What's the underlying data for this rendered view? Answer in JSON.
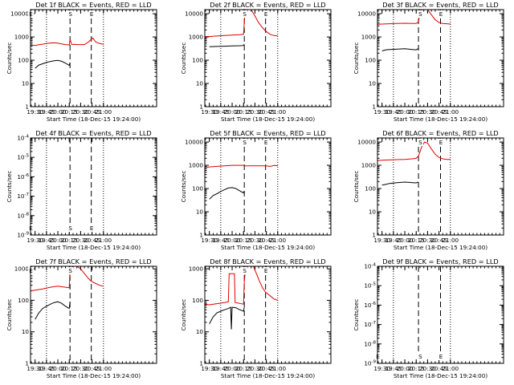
{
  "colors": {
    "events": "#000000",
    "lld": "#e00000"
  },
  "xaxis": {
    "range_min": [
      1104,
      1270
    ],
    "ticks": [
      {
        "t": 1110,
        "label": "19:30"
      },
      {
        "t": 1125,
        "label": "19:45"
      },
      {
        "t": 1140,
        "label": "20:00"
      },
      {
        "t": 1155,
        "label": "20:15"
      },
      {
        "t": 1170,
        "label": "20:30"
      },
      {
        "t": 1185,
        "label": "20:45"
      },
      {
        "t": 1200,
        "label": "21:00"
      }
    ],
    "xlabel": "Start Time (18-Dec-15 19:24:00)"
  },
  "ylabel": "Counts/sec",
  "chart_data": [
    {
      "type": "line",
      "title": "Det 1f BLACK = Events, RED = LLD",
      "ylim": [
        1,
        15000
      ],
      "yscale": "log",
      "ytick_style": "plain",
      "markers": {
        "E": [
          1104,
          1184
        ],
        "S": [
          1156
        ]
      },
      "dotted_x": [
        1125,
        1200
      ],
      "dashed_x": [
        1156,
        1184
      ],
      "has_data": true,
      "series": [
        {
          "name": "Events",
          "color": "#000000",
          "points": [
            [
              1110,
              45
            ],
            [
              1115,
              62
            ],
            [
              1120,
              70
            ],
            [
              1125,
              80
            ],
            [
              1130,
              88
            ],
            [
              1135,
              95
            ],
            [
              1140,
              98
            ],
            [
              1145,
              90
            ],
            [
              1150,
              75
            ],
            [
              1155,
              60
            ],
            [
              1156,
              80
            ]
          ]
        },
        {
          "name": "LLD",
          "color": "#e00000",
          "points": [
            [
              1104,
              450
            ],
            [
              1110,
              430
            ],
            [
              1115,
              460
            ],
            [
              1120,
              490
            ],
            [
              1125,
              520
            ],
            [
              1130,
              550
            ],
            [
              1135,
              560
            ],
            [
              1140,
              540
            ],
            [
              1145,
              500
            ],
            [
              1150,
              470
            ],
            [
              1155,
              450
            ],
            [
              1156,
              800
            ],
            [
              1158,
              480
            ],
            [
              1165,
              470
            ],
            [
              1175,
              470
            ],
            [
              1180,
              600
            ],
            [
              1184,
              800
            ],
            [
              1186,
              900
            ],
            [
              1190,
              600
            ],
            [
              1195,
              520
            ],
            [
              1200,
              480
            ]
          ]
        }
      ]
    },
    {
      "type": "line",
      "title": "Det 2f BLACK = Events, RED = LLD",
      "ylim": [
        1,
        15000
      ],
      "yscale": "log",
      "ytick_style": "plain",
      "markers": {
        "E": [
          1184
        ],
        "S": [
          1156
        ]
      },
      "dotted_x": [
        1125,
        1200
      ],
      "dashed_x": [
        1156,
        1184
      ],
      "has_data": true,
      "series": [
        {
          "name": "Events",
          "color": "#000000",
          "points": [
            [
              1110,
              380
            ],
            [
              1120,
              390
            ],
            [
              1130,
              400
            ],
            [
              1140,
              410
            ],
            [
              1150,
              420
            ],
            [
              1155,
              430
            ],
            [
              1156,
              500
            ]
          ]
        },
        {
          "name": "LLD",
          "color": "#e00000",
          "points": [
            [
              1104,
              1050
            ],
            [
              1110,
              1050
            ],
            [
              1120,
              1100
            ],
            [
              1130,
              1150
            ],
            [
              1140,
              1200
            ],
            [
              1150,
              1250
            ],
            [
              1155,
              1300
            ],
            [
              1156,
              4000
            ],
            [
              1157,
              15000
            ],
            [
              1165,
              15000
            ],
            [
              1170,
              8000
            ],
            [
              1175,
              4000
            ],
            [
              1180,
              2500
            ],
            [
              1184,
              1800
            ],
            [
              1190,
              1300
            ],
            [
              1195,
              1150
            ],
            [
              1200,
              1100
            ]
          ]
        }
      ]
    },
    {
      "type": "line",
      "title": "Det 3f BLACK = Events, RED = LLD",
      "ylim": [
        1,
        15000
      ],
      "yscale": "log",
      "ytick_style": "plain",
      "markers": {
        "E": [
          1187
        ],
        "S": [
          1160
        ]
      },
      "dotted_x": [
        1125,
        1200
      ],
      "dashed_x": [
        1158,
        1187
      ],
      "has_data": true,
      "series": [
        {
          "name": "Events",
          "color": "#000000",
          "points": [
            [
              1110,
              250
            ],
            [
              1115,
              280
            ],
            [
              1120,
              290
            ],
            [
              1130,
              300
            ],
            [
              1140,
              310
            ],
            [
              1150,
              290
            ],
            [
              1155,
              280
            ],
            [
              1158,
              320
            ]
          ]
        },
        {
          "name": "LLD",
          "color": "#e00000",
          "points": [
            [
              1104,
              3500
            ],
            [
              1110,
              3600
            ],
            [
              1120,
              3700
            ],
            [
              1130,
              3800
            ],
            [
              1140,
              3900
            ],
            [
              1150,
              3800
            ],
            [
              1155,
              3800
            ],
            [
              1158,
              4500
            ],
            [
              1160,
              12000
            ],
            [
              1163,
              15000
            ],
            [
              1170,
              15000
            ],
            [
              1175,
              9000
            ],
            [
              1180,
              5500
            ],
            [
              1185,
              4200
            ],
            [
              1190,
              3800
            ],
            [
              1195,
              3700
            ],
            [
              1200,
              3600
            ]
          ]
        }
      ]
    },
    {
      "type": "line",
      "title": "Det 4f BLACK = Events, RED = LLD",
      "ylim": [
        1e-09,
        0.0001
      ],
      "yscale": "log",
      "ytick_style": "exp",
      "markers": {
        "E": [
          1104,
          1184
        ],
        "S": [
          1156
        ]
      },
      "dotted_x": [
        1125,
        1200
      ],
      "dashed_x": [
        1156,
        1184
      ],
      "has_data": false,
      "series": []
    },
    {
      "type": "line",
      "title": "Det 5f BLACK = Events, RED = LLD",
      "ylim": [
        1,
        15000
      ],
      "yscale": "log",
      "ytick_style": "plain",
      "markers": {
        "E": [
          1184
        ],
        "S": [
          1156
        ]
      },
      "dotted_x": [
        1125,
        1200
      ],
      "dashed_x": [
        1156,
        1184
      ],
      "has_data": true,
      "series": [
        {
          "name": "Events",
          "color": "#000000",
          "points": [
            [
              1110,
              35
            ],
            [
              1115,
              50
            ],
            [
              1120,
              60
            ],
            [
              1125,
              75
            ],
            [
              1130,
              90
            ],
            [
              1135,
              105
            ],
            [
              1140,
              110
            ],
            [
              1145,
              100
            ],
            [
              1150,
              80
            ],
            [
              1155,
              65
            ],
            [
              1156,
              80
            ]
          ]
        },
        {
          "name": "LLD",
          "color": "#e00000",
          "points": [
            [
              1104,
              800
            ],
            [
              1110,
              850
            ],
            [
              1120,
              900
            ],
            [
              1130,
              950
            ],
            [
              1140,
              1000
            ],
            [
              1150,
              1000
            ],
            [
              1155,
              1000
            ],
            [
              1156,
              950
            ],
            [
              1165,
              950
            ],
            [
              1175,
              950
            ],
            [
              1184,
              950
            ],
            [
              1190,
              900
            ],
            [
              1196,
              1000
            ],
            [
              1200,
              950
            ]
          ]
        }
      ]
    },
    {
      "type": "line",
      "title": "Det 6f BLACK = Events, RED = LLD",
      "ylim": [
        1,
        15000
      ],
      "yscale": "log",
      "ytick_style": "plain",
      "markers": {
        "E": [
          1187
        ],
        "S": [
          1160
        ]
      },
      "dotted_x": [
        1125,
        1200
      ],
      "dashed_x": [
        1158,
        1187
      ],
      "has_data": true,
      "series": [
        {
          "name": "Events",
          "color": "#000000",
          "points": [
            [
              1110,
              140
            ],
            [
              1115,
              150
            ],
            [
              1120,
              165
            ],
            [
              1130,
              180
            ],
            [
              1140,
              190
            ],
            [
              1150,
              180
            ],
            [
              1155,
              175
            ],
            [
              1158,
              190
            ]
          ]
        },
        {
          "name": "LLD",
          "color": "#e00000",
          "points": [
            [
              1104,
              1600
            ],
            [
              1110,
              1650
            ],
            [
              1120,
              1700
            ],
            [
              1130,
              1750
            ],
            [
              1140,
              1800
            ],
            [
              1150,
              1900
            ],
            [
              1155,
              2000
            ],
            [
              1158,
              2500
            ],
            [
              1162,
              6000
            ],
            [
              1166,
              10000
            ],
            [
              1170,
              9000
            ],
            [
              1175,
              5000
            ],
            [
              1180,
              3000
            ],
            [
              1185,
              2200
            ],
            [
              1190,
              1900
            ],
            [
              1195,
              1800
            ],
            [
              1200,
              1800
            ]
          ]
        }
      ]
    },
    {
      "type": "line",
      "title": "Det 7f BLACK = Events, RED = LLD",
      "ylim": [
        1,
        1200
      ],
      "yscale": "log",
      "ytick_style": "plain",
      "markers": {
        "E": [
          1104
        ],
        "S": [
          1156
        ]
      },
      "dotted_x": [
        1125,
        1200
      ],
      "dashed_x": [
        1156,
        1184
      ],
      "has_data": true,
      "series": [
        {
          "name": "Events",
          "color": "#000000",
          "points": [
            [
              1110,
              25
            ],
            [
              1115,
              40
            ],
            [
              1120,
              55
            ],
            [
              1125,
              65
            ],
            [
              1130,
              75
            ],
            [
              1135,
              85
            ],
            [
              1140,
              90
            ],
            [
              1145,
              80
            ],
            [
              1150,
              65
            ],
            [
              1155,
              55
            ],
            [
              1156,
              90
            ]
          ]
        },
        {
          "name": "LLD",
          "color": "#e00000",
          "points": [
            [
              1104,
              200
            ],
            [
              1110,
              210
            ],
            [
              1120,
              230
            ],
            [
              1130,
              260
            ],
            [
              1140,
              280
            ],
            [
              1150,
              260
            ],
            [
              1155,
              250
            ],
            [
              1156,
              1000
            ],
            [
              1160,
              1200
            ],
            [
              1165,
              1200
            ],
            [
              1170,
              1000
            ],
            [
              1175,
              700
            ],
            [
              1180,
              500
            ],
            [
              1184,
              400
            ],
            [
              1190,
              340
            ],
            [
              1195,
              300
            ],
            [
              1200,
              280
            ]
          ]
        }
      ]
    },
    {
      "type": "line",
      "title": "Det 8f BLACK = Events, RED = LLD",
      "ylim": [
        1,
        1200
      ],
      "yscale": "log",
      "ytick_style": "plain",
      "markers": {
        "E": [
          1184
        ],
        "S": [
          1156
        ]
      },
      "dotted_x": [
        1125,
        1200
      ],
      "dashed_x": [
        1156,
        1184
      ],
      "has_data": true,
      "series": [
        {
          "name": "Events",
          "color": "#000000",
          "points": [
            [
              1110,
              18
            ],
            [
              1115,
              30
            ],
            [
              1120,
              40
            ],
            [
              1125,
              45
            ],
            [
              1130,
              50
            ],
            [
              1135,
              55
            ],
            [
              1138,
              60
            ],
            [
              1139,
              12
            ],
            [
              1140,
              60
            ],
            [
              1145,
              58
            ],
            [
              1150,
              50
            ],
            [
              1155,
              45
            ],
            [
              1156,
              60
            ]
          ]
        },
        {
          "name": "LLD",
          "color": "#e00000",
          "points": [
            [
              1104,
              75
            ],
            [
              1110,
              72
            ],
            [
              1120,
              78
            ],
            [
              1130,
              85
            ],
            [
              1135,
              90
            ],
            [
              1136,
              700
            ],
            [
              1140,
              700
            ],
            [
              1143,
              700
            ],
            [
              1144,
              85
            ],
            [
              1150,
              80
            ],
            [
              1155,
              75
            ],
            [
              1156,
              400
            ],
            [
              1158,
              1200
            ],
            [
              1168,
              1200
            ],
            [
              1172,
              700
            ],
            [
              1176,
              400
            ],
            [
              1180,
              250
            ],
            [
              1184,
              180
            ],
            [
              1190,
              140
            ],
            [
              1195,
              110
            ],
            [
              1200,
              100
            ]
          ]
        }
      ]
    },
    {
      "type": "line",
      "title": "Det 9f BLACK = Events, RED = LLD",
      "ylim": [
        1e-09,
        0.0001
      ],
      "yscale": "log",
      "ytick_style": "exp",
      "markers": {
        "E": [
          1104,
          1187
        ],
        "S": [
          1160
        ]
      },
      "dotted_x": [
        1125,
        1200
      ],
      "dashed_x": [
        1158,
        1187
      ],
      "has_data": false,
      "series": []
    }
  ]
}
